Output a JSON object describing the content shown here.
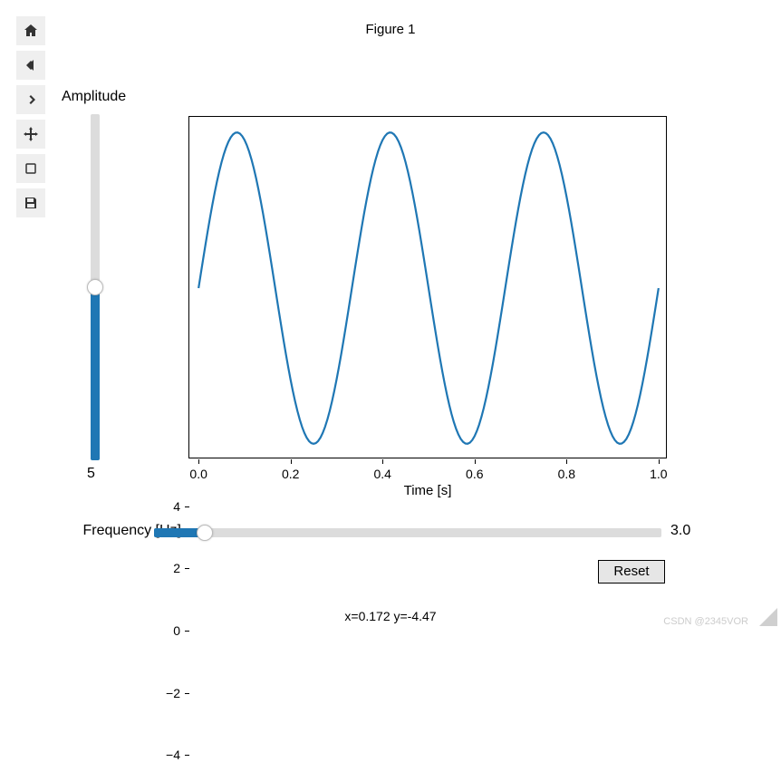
{
  "figure": {
    "title": "Figure 1",
    "coord_readout": "x=0.172 y=-4.47",
    "watermark": "CSDN @2345VOR"
  },
  "toolbar": {
    "items": [
      {
        "name": "home-icon"
      },
      {
        "name": "back-icon"
      },
      {
        "name": "forward-icon"
      },
      {
        "name": "pan-icon"
      },
      {
        "name": "zoom-icon"
      },
      {
        "name": "save-icon"
      }
    ]
  },
  "plot": {
    "type": "line",
    "x_label": "Time [s]",
    "line_color": "#1f77b4",
    "line_width": 2.2,
    "background_color": "#ffffff",
    "border_color": "#000000",
    "xlim": [
      -0.02,
      1.02
    ],
    "ylim": [
      -5.5,
      5.5
    ],
    "x_ticks": [
      0.0,
      0.2,
      0.4,
      0.6,
      0.8,
      1.0
    ],
    "x_tick_labels": [
      "0.0",
      "0.2",
      "0.4",
      "0.6",
      "0.8",
      "1.0"
    ],
    "y_ticks": [
      -4,
      -2,
      0,
      2,
      4
    ],
    "y_tick_labels": [
      "−4",
      "−2",
      "0",
      "2",
      "4"
    ],
    "tick_fontsize": 14,
    "label_fontsize": 15,
    "series": {
      "amplitude": 5,
      "frequency_hz": 3.0,
      "phase": 0,
      "n_points": 200,
      "t_min": 0.0,
      "t_max": 1.0
    }
  },
  "sliders": {
    "amplitude": {
      "label": "Amplitude",
      "value": 5,
      "value_display": "5",
      "min": 0,
      "max": 10,
      "track_color": "#dcdcdc",
      "fill_color": "#1f77b4"
    },
    "frequency": {
      "label": "Frequency [Hz]",
      "value": 3.0,
      "value_display": "3.0",
      "min": 0,
      "max": 30,
      "track_color": "#dcdcdc",
      "fill_color": "#1f77b4"
    }
  },
  "buttons": {
    "reset": "Reset"
  }
}
